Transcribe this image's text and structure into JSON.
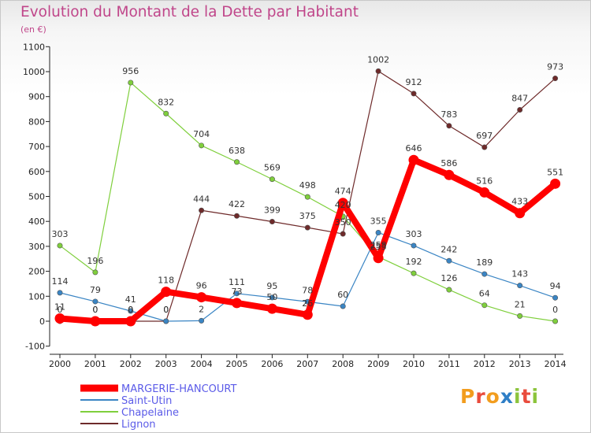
{
  "header": {
    "title": "Evolution du Montant de la Dette par Habitant",
    "unit": "(en €)"
  },
  "logo": {
    "text": "Proxiti"
  },
  "chart_data": {
    "type": "line",
    "title": "Evolution du Montant de la Dette par Habitant",
    "subtitle": "(en €)",
    "xlabel": "",
    "ylabel": "",
    "x": [
      "2000",
      "2001",
      "2002",
      "2003",
      "2004",
      "2005",
      "2006",
      "2007",
      "2008",
      "2009",
      "2010",
      "2011",
      "2012",
      "2013",
      "2014"
    ],
    "y_ticks": [
      "-100",
      "0",
      "100",
      "200",
      "300",
      "400",
      "500",
      "600",
      "700",
      "800",
      "900",
      "1000",
      "1100"
    ],
    "ylim": [
      -100,
      1100
    ],
    "grid": false,
    "legend_position": "bottom-left",
    "series": [
      {
        "name": "MARGERIE-HANCOURT",
        "color": "#ff0000",
        "values": [
          11,
          0,
          0,
          118,
          96,
          73,
          50,
          26,
          474,
          253,
          646,
          586,
          516,
          433,
          551
        ],
        "labels": [
          "11",
          "0",
          "0",
          "118",
          "96",
          "73",
          "50",
          "26",
          "474",
          "253",
          "646",
          "586",
          "516",
          "433",
          "551"
        ]
      },
      {
        "name": "Saint-Utin",
        "color": "#3a85c4",
        "values": [
          114,
          79,
          41,
          0,
          2,
          111,
          95,
          78,
          60,
          355,
          303,
          242,
          189,
          143,
          94
        ],
        "labels": [
          "114",
          "79",
          "41",
          "0",
          "2",
          "111",
          "95",
          "78",
          "60",
          "355",
          "303",
          "242",
          "189",
          "143",
          "94"
        ]
      },
      {
        "name": "Chapelaine",
        "color": "#7fcf3c",
        "values": [
          303,
          196,
          956,
          832,
          704,
          638,
          569,
          498,
          420,
          258,
          192,
          126,
          64,
          21,
          0
        ],
        "labels": [
          "303",
          "196",
          "956",
          "832",
          "704",
          "638",
          "569",
          "498",
          "420",
          "258",
          "192",
          "126",
          "64",
          "21",
          "0"
        ]
      },
      {
        "name": "Lignon",
        "color": "#6e2a2a",
        "values": [
          0,
          0,
          0,
          0,
          444,
          422,
          399,
          375,
          350,
          1002,
          912,
          783,
          697,
          847,
          973
        ],
        "labels": [
          "0",
          "0",
          "0",
          "0",
          "444",
          "422",
          "399",
          "375",
          "350",
          "1002",
          "912",
          "783",
          "697",
          "847",
          "973"
        ]
      }
    ]
  }
}
